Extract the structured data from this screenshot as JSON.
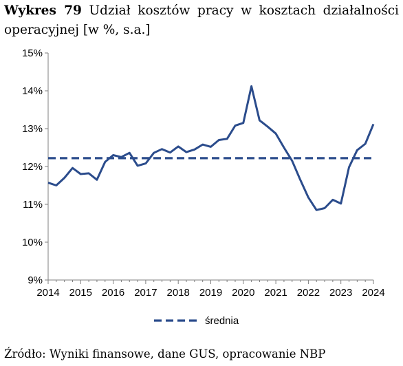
{
  "title": {
    "prefix": "Wykres 79",
    "text": "Udział kosztów pracy w kosztach działalności operacyjnej [w %, s.a.]"
  },
  "source": "Źródło: Wyniki finansowe, dane GUS, opracowanie NBP",
  "chart_data": {
    "type": "line",
    "ylim": [
      9,
      15
    ],
    "y_ticks": [
      "9%",
      "10%",
      "11%",
      "12%",
      "13%",
      "14%",
      "15%"
    ],
    "x_tick_labels": [
      "2014",
      "2015",
      "2016",
      "2017",
      "2018",
      "2019",
      "2020",
      "2021",
      "2022",
      "2023",
      "2024"
    ],
    "x_start": 2014.0,
    "x_end": 2024.0,
    "series": [
      {
        "name": "",
        "color": "#2b4c8c",
        "style": "solid",
        "x": [
          2014.0,
          2014.25,
          2014.5,
          2014.75,
          2015.0,
          2015.25,
          2015.5,
          2015.75,
          2016.0,
          2016.25,
          2016.5,
          2016.75,
          2017.0,
          2017.25,
          2017.5,
          2017.75,
          2018.0,
          2018.25,
          2018.5,
          2018.75,
          2019.0,
          2019.25,
          2019.5,
          2019.75,
          2020.0,
          2020.25,
          2020.5,
          2020.75,
          2021.0,
          2021.25,
          2021.5,
          2021.75,
          2022.0,
          2022.25,
          2022.5,
          2022.75,
          2023.0,
          2023.25,
          2023.5,
          2023.75,
          2024.0
        ],
        "values": [
          11.57,
          11.5,
          11.7,
          11.96,
          11.8,
          11.82,
          11.65,
          12.12,
          12.3,
          12.25,
          12.36,
          12.02,
          12.08,
          12.36,
          12.46,
          12.37,
          12.53,
          12.38,
          12.45,
          12.58,
          12.52,
          12.7,
          12.73,
          13.08,
          13.15,
          14.12,
          13.22,
          13.05,
          12.87,
          12.5,
          12.15,
          11.65,
          11.18,
          10.85,
          10.9,
          11.12,
          11.02,
          11.98,
          12.43,
          12.6,
          13.12
        ]
      },
      {
        "name": "średnia",
        "color": "#2b4c8c",
        "style": "dashed",
        "x": [
          2014.0,
          2024.0
        ],
        "values": [
          12.22,
          12.22
        ]
      }
    ],
    "legend": {
      "position": "bottom-center",
      "label": "średnia"
    }
  }
}
